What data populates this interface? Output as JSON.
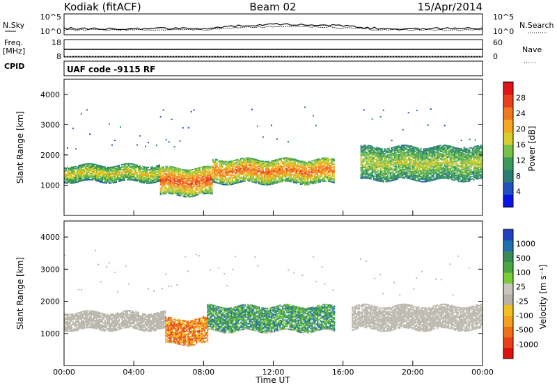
{
  "header": {
    "station": "Kodiak (fitACF)",
    "beam": "Beam 02",
    "date": "15/Apr/2014"
  },
  "strips": {
    "sky_label": "N.Sky",
    "search_label": "N.Search",
    "freq_label": "Freq.",
    "freq_unit": "[MHz]",
    "nave_label": "Nave",
    "cpid_label": "CPID",
    "cpid_text": "UAF code -9115 RF",
    "sky_ticks": [
      "10^5",
      "10^0"
    ],
    "search_ticks": [
      "10^5",
      "10^0"
    ],
    "freq_ticks": [
      "18",
      "8"
    ],
    "nave_ticks": [
      "60",
      "0"
    ]
  },
  "colors": {
    "power": [
      "#0b12e8",
      "#1f4fc0",
      "#2a7f74",
      "#3a9a5a",
      "#78c04a",
      "#d6cc2c",
      "#f6a524",
      "#f07820",
      "#e8401a",
      "#e01414"
    ],
    "velocity": [
      "#2040c0",
      "#2070b0",
      "#3a8a58",
      "#48a840",
      "#78cc3a",
      "#c8c6bc",
      "#b8b2a6",
      "#f0c020",
      "#f5a020",
      "#f07018",
      "#e84018",
      "#e01010"
    ],
    "scatter_gray": "#bdbab0",
    "axis": "#000000"
  },
  "chart_data": [
    {
      "type": "heatmap",
      "panel": "power",
      "ylabel": "Slant Range [km]",
      "ylim": [
        0,
        4500
      ],
      "yticks": [
        "1000",
        "2000",
        "3000",
        "4000"
      ],
      "xlim": [
        0,
        24
      ],
      "colorbar": {
        "label": "Power [dB]",
        "ticks": [
          "4",
          "8",
          "12",
          "16",
          "20",
          "24",
          "28"
        ],
        "range": [
          0,
          30
        ]
      },
      "echo_bands": [
        {
          "from_hr": 0.0,
          "to_hr": 5.5,
          "low_km": 1150,
          "high_km": 1700,
          "level_db": 18
        },
        {
          "from_hr": 5.5,
          "to_hr": 8.5,
          "low_km": 700,
          "high_km": 1600,
          "level_db": 26
        },
        {
          "from_hr": 8.5,
          "to_hr": 15.5,
          "low_km": 1100,
          "high_km": 1900,
          "level_db": 24
        },
        {
          "from_hr": 17.0,
          "to_hr": 24.0,
          "low_km": 1200,
          "high_km": 2300,
          "level_db": 16
        }
      ]
    },
    {
      "type": "heatmap",
      "panel": "velocity",
      "ylabel": "Slant Range [km]",
      "ylim": [
        0,
        4500
      ],
      "yticks": [
        "1000",
        "2000",
        "3000",
        "4000"
      ],
      "xlim": [
        0,
        24
      ],
      "xlabel": "Time UT",
      "xticks": [
        "00:00",
        "04:00",
        "08:00",
        "12:00",
        "16:00",
        "20:00",
        "00:00"
      ],
      "colorbar": {
        "label": "Velocity [m s⁻¹]",
        "ticks": [
          "1000",
          "500",
          "100",
          "25",
          "-25",
          "-100",
          "-500",
          "-1000"
        ]
      },
      "echo_bands": [
        {
          "from_hr": 0.0,
          "to_hr": 5.8,
          "low_km": 1150,
          "high_km": 1700,
          "class": "ground"
        },
        {
          "from_hr": 5.8,
          "to_hr": 8.2,
          "low_km": 700,
          "high_km": 1500,
          "class": "negative"
        },
        {
          "from_hr": 8.2,
          "to_hr": 15.5,
          "low_km": 1100,
          "high_km": 1900,
          "class": "positive"
        },
        {
          "from_hr": 16.5,
          "to_hr": 24.0,
          "low_km": 1150,
          "high_km": 1900,
          "class": "ground"
        }
      ]
    }
  ]
}
